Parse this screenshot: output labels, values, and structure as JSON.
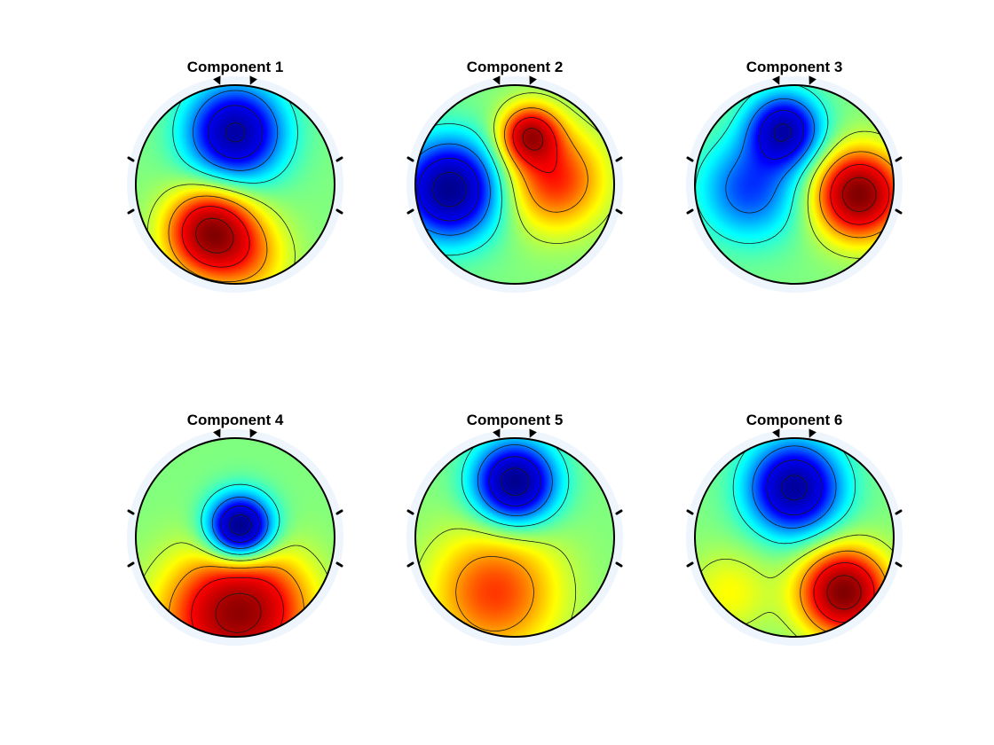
{
  "chart_data": {
    "type": "heatmap",
    "description_kind": "scalp topographic maps",
    "colormap": [
      "#00008f",
      "#0000ff",
      "#00ffff",
      "#ffff00",
      "#ff0000",
      "#800000"
    ],
    "value_range": [
      -1,
      1
    ],
    "panels": [
      {
        "title": "Component 1",
        "sources": [
          {
            "x": 0.0,
            "y": 0.52,
            "w": 1.0,
            "s": 0.33
          },
          {
            "x": -0.25,
            "y": -0.48,
            "w": -1.0,
            "s": 0.3
          },
          {
            "x": 0.15,
            "y": -0.75,
            "w": -0.3,
            "s": 0.3
          }
        ]
      },
      {
        "title": "Component 2",
        "sources": [
          {
            "x": -0.65,
            "y": -0.05,
            "w": 1.0,
            "s": 0.34
          },
          {
            "x": 0.15,
            "y": 0.5,
            "w": -0.75,
            "s": 0.2
          },
          {
            "x": 0.4,
            "y": 0.05,
            "w": -0.55,
            "s": 0.35
          }
        ]
      },
      {
        "title": "Component 3",
        "sources": [
          {
            "x": -0.1,
            "y": 0.55,
            "w": 0.85,
            "s": 0.25
          },
          {
            "x": -0.45,
            "y": -0.05,
            "w": 0.5,
            "s": 0.35
          },
          {
            "x": 0.65,
            "y": -0.1,
            "w": -1.0,
            "s": 0.3
          }
        ]
      },
      {
        "title": "Component 4",
        "sources": [
          {
            "x": 0.05,
            "y": 0.1,
            "w": 1.0,
            "s": 0.22
          },
          {
            "x": -0.15,
            "y": -0.8,
            "w": -0.55,
            "s": 0.45
          },
          {
            "x": 0.25,
            "y": -0.7,
            "w": -0.4,
            "s": 0.4
          }
        ]
      },
      {
        "title": "Component 5",
        "sources": [
          {
            "x": 0.0,
            "y": 0.55,
            "w": 1.0,
            "s": 0.28
          },
          {
            "x": -0.2,
            "y": -0.55,
            "w": -0.5,
            "s": 0.45
          }
        ]
      },
      {
        "title": "Component 6",
        "sources": [
          {
            "x": 0.0,
            "y": 0.5,
            "w": 0.95,
            "s": 0.32
          },
          {
            "x": 0.5,
            "y": -0.55,
            "w": -1.0,
            "s": 0.3
          },
          {
            "x": -0.65,
            "y": -0.55,
            "w": -0.2,
            "s": 0.3
          }
        ]
      }
    ]
  }
}
